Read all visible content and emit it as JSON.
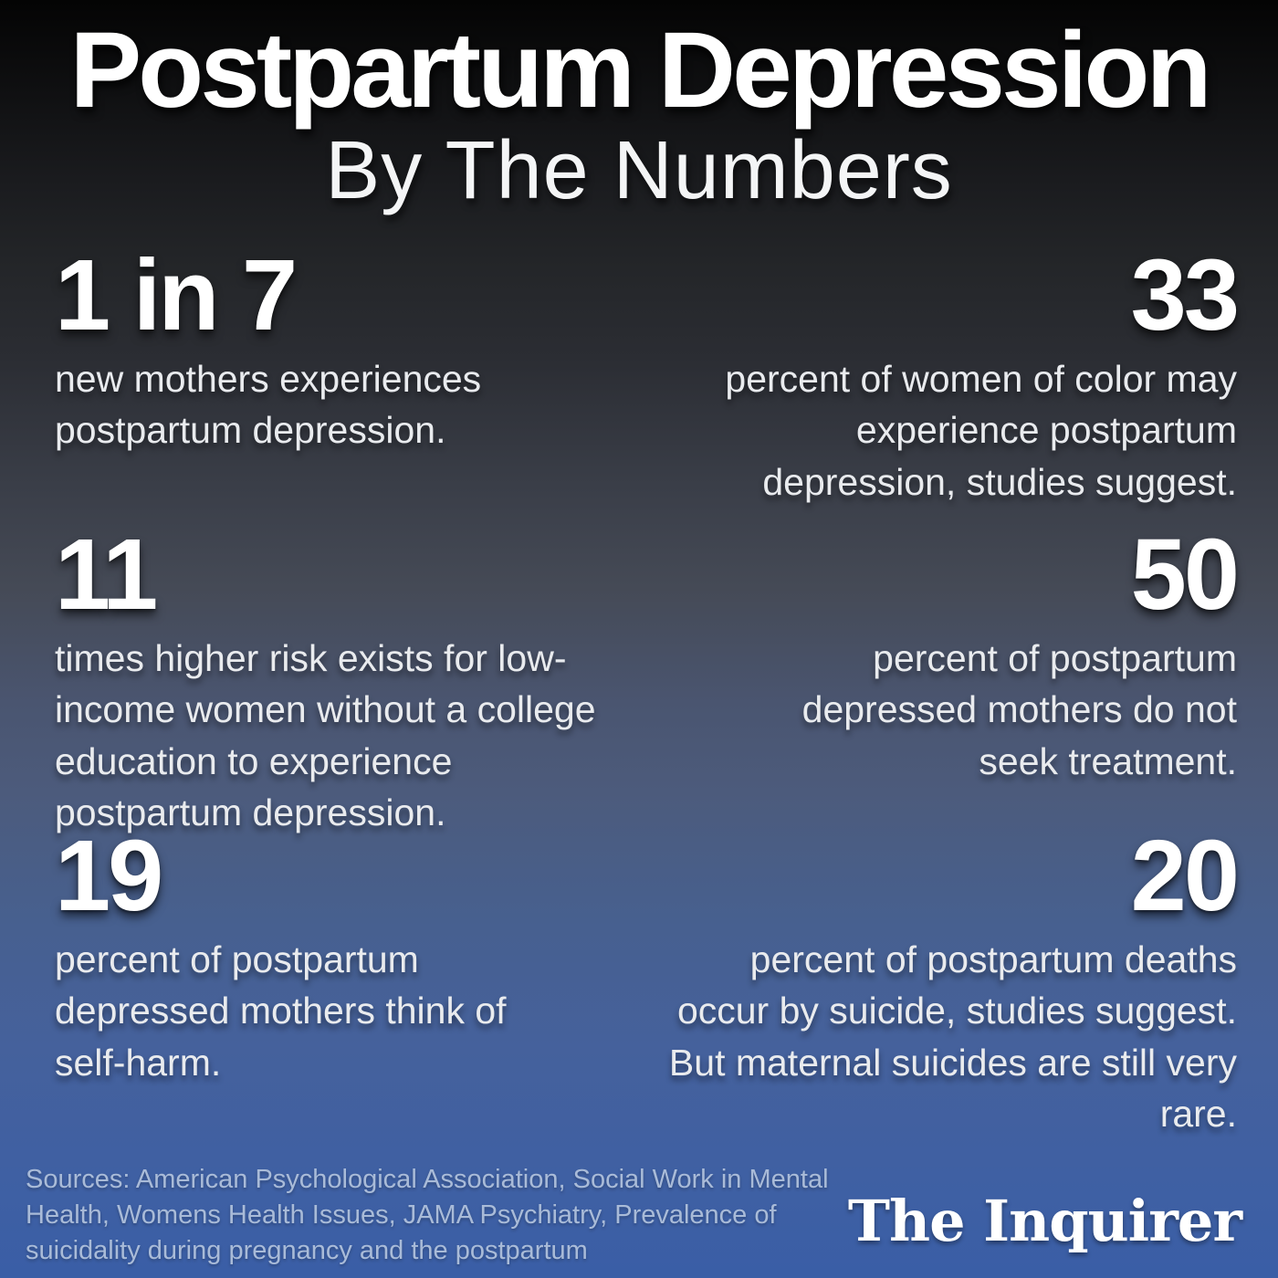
{
  "header": {
    "title": "Postpartum Depression",
    "subtitle": "By The Numbers"
  },
  "stats": [
    {
      "number": "1 in 7",
      "description": "new mothers experiences postpartum depression."
    },
    {
      "number": "33",
      "description": "percent of women of color may experience postpartum depression, studies suggest."
    },
    {
      "number": "11",
      "description": "times higher risk exists for low-income women without a college education to experience postpartum depression."
    },
    {
      "number": "50",
      "description": "percent of postpartum depressed mothers do not seek treatment."
    },
    {
      "number": "19",
      "description": "percent of postpartum depressed mothers think of self-harm."
    },
    {
      "number": "20",
      "description": "percent of postpartum deaths occur by suicide, studies suggest. But maternal suicides are still very rare."
    }
  ],
  "footer": {
    "sources": "Sources: American Psychological Association, Social Work in Mental Health, Womens Health Issues, JAMA Psychiatry, Prevalence of suicidality during pregnancy and the postpartum",
    "publisher": "The Inquirer"
  },
  "colors": {
    "background_top": "#040404",
    "background_middle": "#454a56",
    "background_bottom": "#3a5ea6",
    "number_text": "#ffffff",
    "description_text": "#e9ebee",
    "sources_text": "#a9bbd8"
  },
  "chart_data": {
    "type": "table",
    "title": "Postpartum Depression — By The Numbers",
    "columns": [
      "statistic",
      "description"
    ],
    "rows": [
      [
        "1 in 7",
        "new mothers experiences postpartum depression."
      ],
      [
        "33",
        "percent of women of color may experience postpartum depression, studies suggest."
      ],
      [
        "11",
        "times higher risk exists for low-income women without a college education to experience postpartum depression."
      ],
      [
        "50",
        "percent of postpartum depressed mothers do not seek treatment."
      ],
      [
        "19",
        "percent of postpartum depressed mothers think of self-harm."
      ],
      [
        "20",
        "percent of postpartum deaths occur by suicide, studies suggest. But maternal suicides are still very rare."
      ]
    ],
    "legend": false,
    "grid": false
  }
}
